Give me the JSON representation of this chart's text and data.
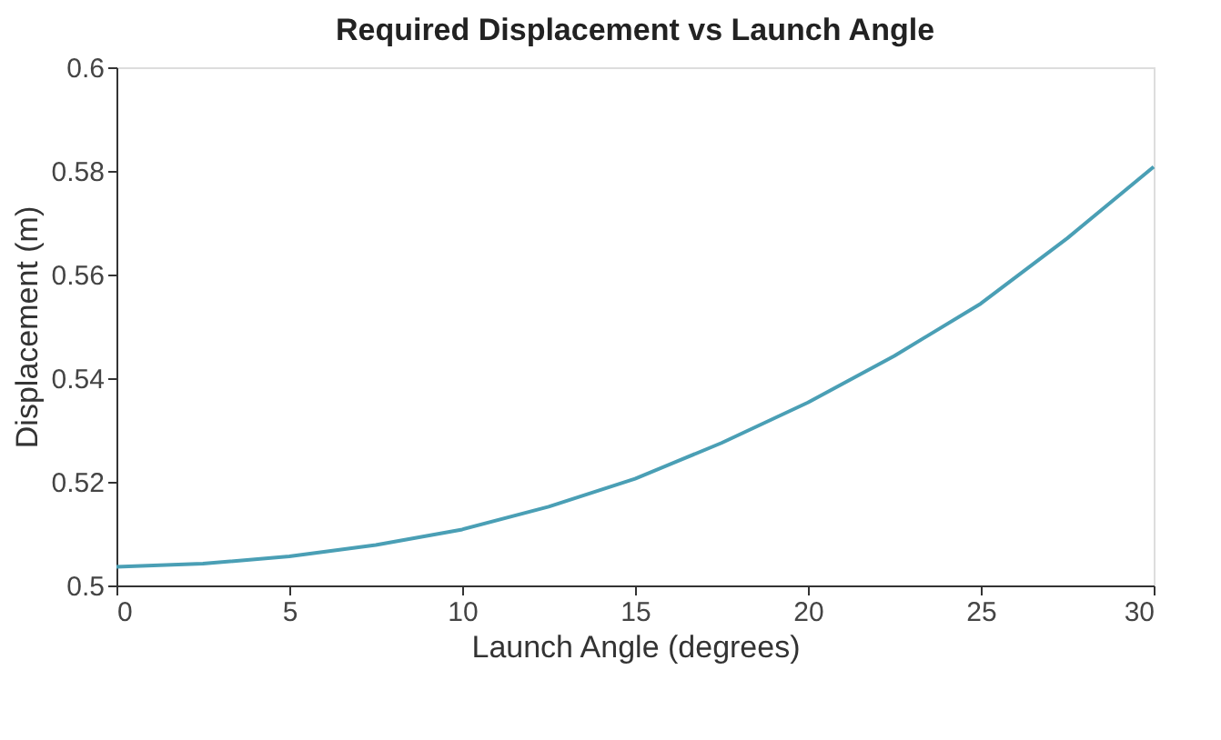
{
  "chart_data": {
    "type": "line",
    "title": "Required Displacement vs Launch Angle",
    "xlabel": "Launch Angle (degrees)",
    "ylabel": "Displacement (m)",
    "x": [
      0,
      2.5,
      5,
      7.5,
      10,
      12.5,
      15,
      17.5,
      20,
      22.5,
      25,
      27.5,
      30
    ],
    "series": [
      {
        "color": "#4a9fb5",
        "values": [
          0.5036,
          0.5042,
          0.5056,
          0.5078,
          0.5108,
          0.5152,
          0.5206,
          0.5275,
          0.5353,
          0.5443,
          0.5544,
          0.567,
          0.5808
        ]
      }
    ],
    "xlim": [
      0,
      30
    ],
    "xticks": [
      0,
      5,
      10,
      15,
      20,
      25,
      30
    ],
    "ylim": [
      0.5,
      0.6
    ],
    "yticks": [
      {
        "value": 0.5,
        "label": "0.5"
      },
      0.52,
      0.54,
      0.56,
      0.58,
      {
        "value": 0.6,
        "label": "0.6"
      }
    ],
    "grid": false,
    "legend": false,
    "marker": "none",
    "line_style": "solid"
  }
}
